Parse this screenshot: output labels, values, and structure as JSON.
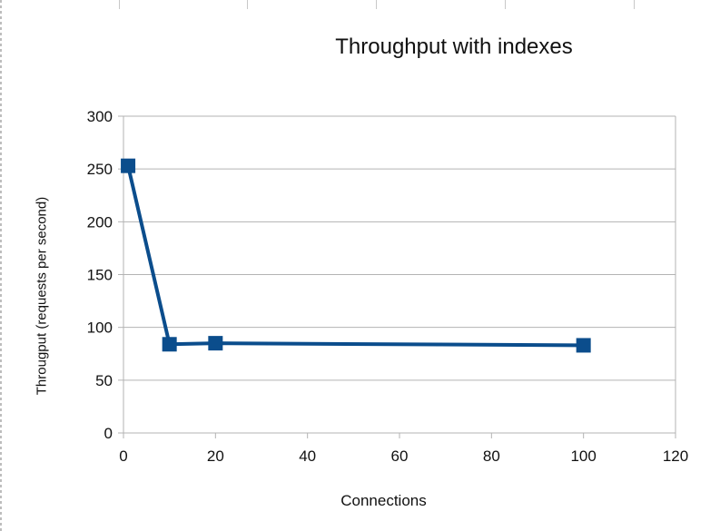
{
  "chart_data": {
    "type": "line",
    "title": "Throughput with indexes",
    "xlabel": "Connections",
    "ylabel": "Througput (requests per second)",
    "xlim": [
      0,
      120
    ],
    "ylim": [
      0,
      300
    ],
    "xticks": [
      0,
      20,
      40,
      60,
      80,
      100,
      120
    ],
    "yticks": [
      0,
      50,
      100,
      150,
      200,
      250,
      300
    ],
    "grid": "horizontal",
    "legend": "none",
    "series": [
      {
        "color": "#0b4d8c",
        "marker": "square",
        "x": [
          1,
          10,
          20,
          100
        ],
        "y": [
          253,
          84,
          85,
          83
        ]
      }
    ]
  }
}
